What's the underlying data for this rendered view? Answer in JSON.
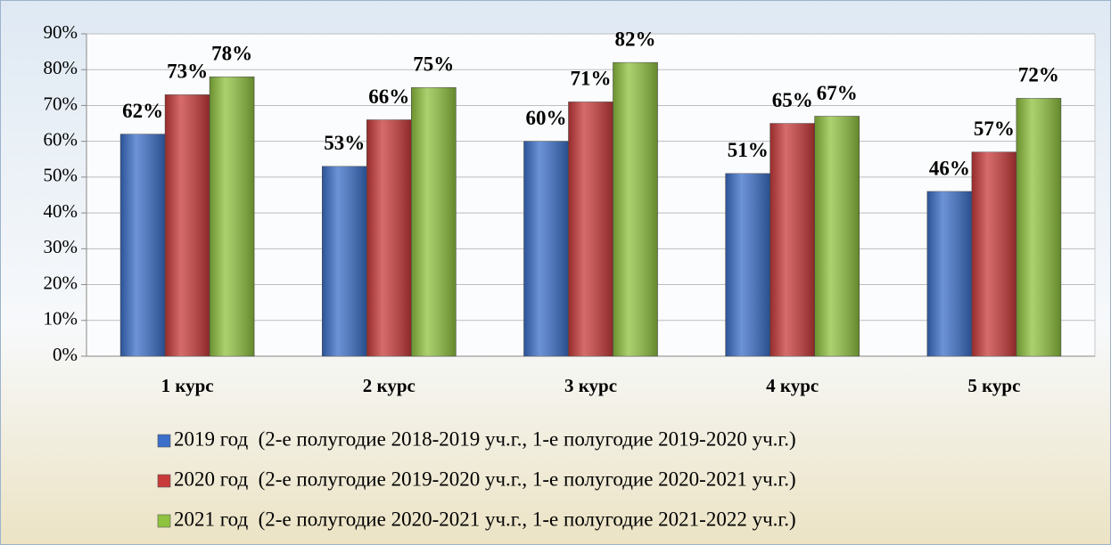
{
  "chart_data": {
    "type": "bar",
    "categories": [
      "1 курс",
      "2 курс",
      "3 курс",
      "4 курс",
      "5 курс"
    ],
    "series": [
      {
        "name": "2019 год  (2-е полугодие 2018-2019 уч.г., 1-е полугодие 2019-2020 уч.г.)",
        "color": "#3b6fc9",
        "values": [
          62,
          53,
          60,
          51,
          46
        ],
        "value_labels": [
          "62%",
          "53%",
          "60%",
          "51%",
          "46%"
        ]
      },
      {
        "name": "2020 год  (2-е полугодие 2019-2020 уч.г., 1-е полугодие 2020-2021 уч.г.)",
        "color": "#c93a3a",
        "values": [
          73,
          66,
          71,
          65,
          57
        ],
        "value_labels": [
          "73%",
          "66%",
          "71%",
          "65%",
          "57%"
        ]
      },
      {
        "name": "2021 год  (2-е полугодие 2020-2021 уч.г., 1-е полугодие 2021-2022 уч.г.)",
        "color": "#8fc23f",
        "values": [
          78,
          75,
          82,
          67,
          72
        ],
        "value_labels": [
          "78%",
          "75%",
          "82%",
          "67%",
          "72%"
        ]
      }
    ],
    "ylim": [
      0,
      90
    ],
    "yticks": [
      {
        "value": 0,
        "label": "0%"
      },
      {
        "value": 10,
        "label": "10%"
      },
      {
        "value": 20,
        "label": "20%"
      },
      {
        "value": 30,
        "label": "30%"
      },
      {
        "value": 40,
        "label": "40%"
      },
      {
        "value": 50,
        "label": "50%"
      },
      {
        "value": 60,
        "label": "60%"
      },
      {
        "value": 70,
        "label": "70%"
      },
      {
        "value": 80,
        "label": "80%"
      },
      {
        "value": 90,
        "label": "90%"
      }
    ],
    "grid": true
  }
}
